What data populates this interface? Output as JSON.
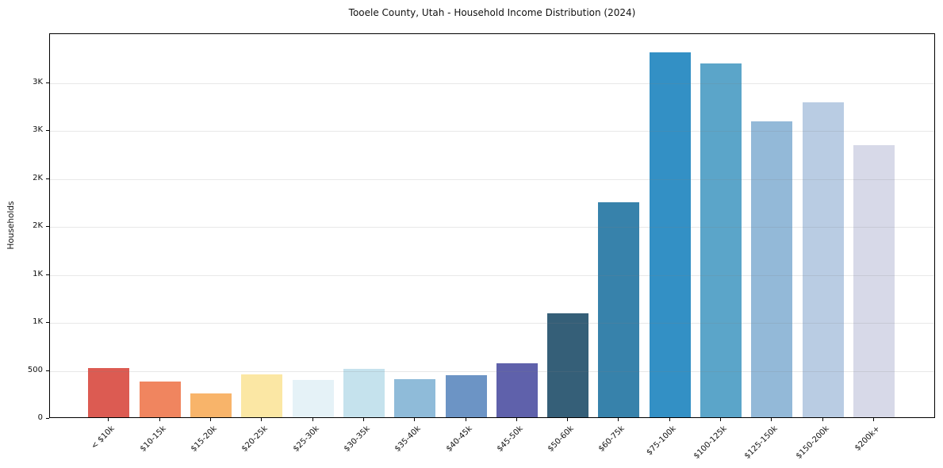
{
  "chart_data": {
    "type": "bar",
    "title": "Tooele County, Utah - Household Income Distribution (2024)",
    "xlabel": "",
    "ylabel": "Households",
    "categories": [
      "< $10k",
      "$10-15k",
      "$15-20k",
      "$20-25k",
      "$25-30k",
      "$30-35k",
      "$35-40k",
      "$40-45k",
      "$45-50k",
      "$50-60k",
      "$60-75k",
      "$75-100k",
      "$100-125k",
      "$125-150k",
      "$150-200k",
      "$200k+"
    ],
    "values": [
      515,
      375,
      250,
      445,
      390,
      505,
      400,
      440,
      565,
      1080,
      2240,
      3805,
      3690,
      3080,
      3280,
      2840
    ],
    "bar_colors": [
      "#dc5b52",
      "#f0855f",
      "#f8b46a",
      "#fbe7a4",
      "#e5f2f7",
      "#c5e2ed",
      "#8fbbd9",
      "#6c94c5",
      "#5f61ab",
      "#355f78",
      "#3782ab",
      "#3390c5",
      "#5ba5c9",
      "#93b9d8",
      "#b9cce3",
      "#d7d9e8"
    ],
    "ytick_values": [
      0,
      500,
      1000,
      1500,
      2000,
      2500,
      3000,
      3500
    ],
    "ytick_labels": [
      "0",
      "500",
      "1K",
      "1K",
      "2K",
      "2K",
      "3K",
      "3K"
    ],
    "ylim": [
      0,
      4010
    ],
    "grid": "horizontal",
    "grid_over_bars": true,
    "background_color": "#ffffff",
    "text_color": "#111111"
  }
}
